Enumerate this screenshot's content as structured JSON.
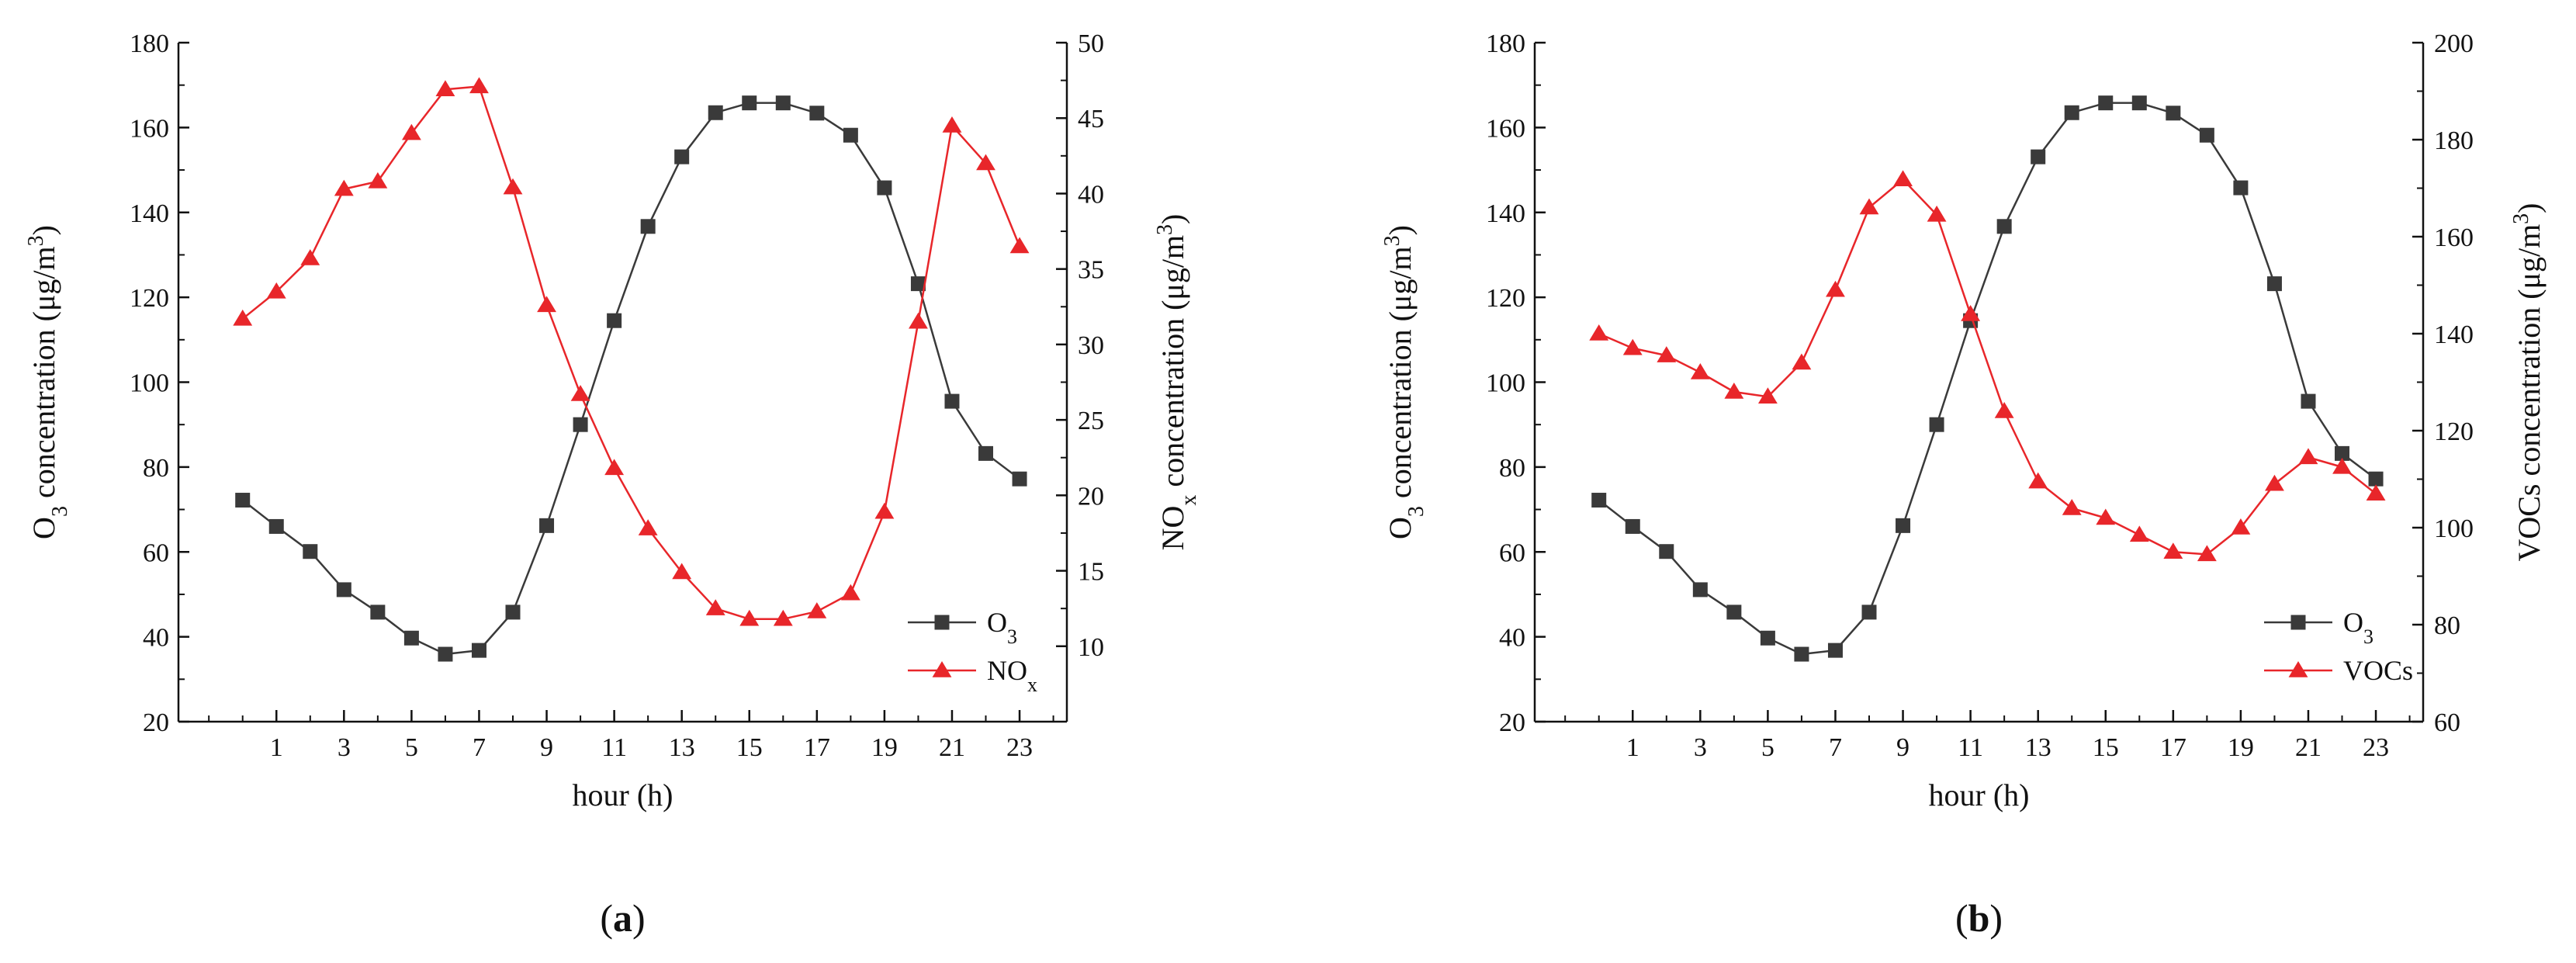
{
  "figure": {
    "panels": [
      {
        "label_open": "(",
        "label_letter": "a",
        "label_close": ")"
      },
      {
        "label_open": "(",
        "label_letter": "b",
        "label_close": ")"
      }
    ]
  },
  "colors": {
    "o3": "#3a3a3a",
    "secondary": "#e8262a",
    "axis": "#111111"
  },
  "icons": {
    "o3_marker": "square-marker-icon",
    "secondary_marker": "triangle-marker-icon"
  },
  "chart_data": [
    {
      "type": "line",
      "title": "",
      "xlabel": "hour (h)",
      "ylabel": "O3 concentration (μg/m3)",
      "ylabel_parts": {
        "pre": "O",
        "sub": "3",
        "mid": " concentration (μg/m",
        "sup": "3",
        "post": ")"
      },
      "y2label": "NOx concentration (μg/m3)",
      "y2label_parts": {
        "pre": "NO",
        "sub": "x",
        "mid": " concentration (μg/m",
        "sup": "3",
        "post": ")"
      },
      "xlim": [
        -1.9,
        24.4
      ],
      "ylim": [
        20,
        180
      ],
      "y2lim": [
        5,
        50
      ],
      "x_tick_labels": [
        {
          "x": 1,
          "label": "1"
        },
        {
          "x": 3,
          "label": "3"
        },
        {
          "x": 5,
          "label": "5"
        },
        {
          "x": 7,
          "label": "7"
        },
        {
          "x": 9,
          "label": "9"
        },
        {
          "x": 11,
          "label": "11"
        },
        {
          "x": 13,
          "label": "13"
        },
        {
          "x": 15,
          "label": "15"
        },
        {
          "x": 17,
          "label": "17"
        },
        {
          "x": 19,
          "label": "19"
        },
        {
          "x": 21,
          "label": "21"
        },
        {
          "x": 23,
          "label": "23"
        }
      ],
      "y_ticks": [
        {
          "value": 20,
          "label": "20"
        },
        {
          "value": 40,
          "label": "40"
        },
        {
          "value": 60,
          "label": "60"
        },
        {
          "value": 80,
          "label": "80"
        },
        {
          "value": 100,
          "label": "100"
        },
        {
          "value": 120,
          "label": "120"
        },
        {
          "value": 140,
          "label": "140"
        },
        {
          "value": 160,
          "label": "160"
        },
        {
          "value": 180,
          "label": "180"
        }
      ],
      "y2_ticks": [
        {
          "value": 10,
          "label": "10"
        },
        {
          "value": 15,
          "label": "15"
        },
        {
          "value": 20,
          "label": "20"
        },
        {
          "value": 25,
          "label": "25"
        },
        {
          "value": 30,
          "label": "30"
        },
        {
          "value": 35,
          "label": "35"
        },
        {
          "value": 40,
          "label": "40"
        },
        {
          "value": 45,
          "label": "45"
        },
        {
          "value": 50,
          "label": "50"
        }
      ],
      "legend_position": "bottom-right",
      "series": [
        {
          "name": "O3",
          "name_main": "O",
          "name_sub": "3",
          "axis": "left",
          "marker": "square",
          "color": "#3a3a3a",
          "x": [
            0,
            1,
            2,
            3,
            4,
            5,
            6,
            7,
            8,
            9,
            10,
            11,
            12,
            13,
            14,
            15,
            16,
            17,
            18,
            19,
            20,
            21,
            22,
            23
          ],
          "values": [
            72.2,
            66.0,
            60.1,
            51.1,
            45.8,
            39.7,
            35.9,
            36.8,
            45.8,
            66.2,
            90.0,
            114.5,
            136.7,
            153.1,
            163.5,
            165.8,
            165.8,
            163.4,
            158.2,
            145.8,
            123.2,
            95.5,
            83.2,
            77.2
          ]
        },
        {
          "name": "NOx",
          "name_main": "NO",
          "name_sub": "x",
          "axis": "right",
          "marker": "triangle",
          "color": "#e8262a",
          "x": [
            0,
            1,
            2,
            3,
            4,
            5,
            6,
            7,
            8,
            9,
            10,
            11,
            12,
            13,
            14,
            15,
            16,
            17,
            18,
            19,
            20,
            21,
            22,
            23
          ],
          "values": [
            31.7,
            33.5,
            35.7,
            40.3,
            40.8,
            44.0,
            46.9,
            47.1,
            40.4,
            32.6,
            26.7,
            21.8,
            17.8,
            14.9,
            12.5,
            11.8,
            11.8,
            12.3,
            13.5,
            18.9,
            31.5,
            44.5,
            42.0,
            36.5
          ]
        }
      ]
    },
    {
      "type": "line",
      "title": "",
      "xlabel": "hour (h)",
      "ylabel": "O3 concentration (μg/m3)",
      "ylabel_parts": {
        "pre": "O",
        "sub": "3",
        "mid": " concentration (μg/m",
        "sup": "3",
        "post": ")"
      },
      "y2label": "VOCs concentration (μg/m3)",
      "y2label_parts": {
        "pre": "VOCs",
        "sub": "",
        "mid": " concentration (μg/m",
        "sup": "3",
        "post": ")"
      },
      "xlim": [
        -1.9,
        24.4
      ],
      "ylim": [
        20,
        180
      ],
      "y2lim": [
        60,
        200
      ],
      "x_tick_labels": [
        {
          "x": 1,
          "label": "1"
        },
        {
          "x": 3,
          "label": "3"
        },
        {
          "x": 5,
          "label": "5"
        },
        {
          "x": 7,
          "label": "7"
        },
        {
          "x": 9,
          "label": "9"
        },
        {
          "x": 11,
          "label": "11"
        },
        {
          "x": 13,
          "label": "13"
        },
        {
          "x": 15,
          "label": "15"
        },
        {
          "x": 17,
          "label": "17"
        },
        {
          "x": 19,
          "label": "19"
        },
        {
          "x": 21,
          "label": "21"
        },
        {
          "x": 23,
          "label": "23"
        }
      ],
      "y_ticks": [
        {
          "value": 20,
          "label": "20"
        },
        {
          "value": 40,
          "label": "40"
        },
        {
          "value": 60,
          "label": "60"
        },
        {
          "value": 80,
          "label": "80"
        },
        {
          "value": 100,
          "label": "100"
        },
        {
          "value": 120,
          "label": "120"
        },
        {
          "value": 140,
          "label": "140"
        },
        {
          "value": 160,
          "label": "160"
        },
        {
          "value": 180,
          "label": "180"
        }
      ],
      "y2_ticks": [
        {
          "value": 60,
          "label": "60"
        },
        {
          "value": 80,
          "label": "80"
        },
        {
          "value": 100,
          "label": "100"
        },
        {
          "value": 120,
          "label": "120"
        },
        {
          "value": 140,
          "label": "140"
        },
        {
          "value": 160,
          "label": "160"
        },
        {
          "value": 180,
          "label": "180"
        },
        {
          "value": 200,
          "label": "200"
        }
      ],
      "legend_position": "bottom-right",
      "series": [
        {
          "name": "O3",
          "name_main": "O",
          "name_sub": "3",
          "axis": "left",
          "marker": "square",
          "color": "#3a3a3a",
          "x": [
            0,
            1,
            2,
            3,
            4,
            5,
            6,
            7,
            8,
            9,
            10,
            11,
            12,
            13,
            14,
            15,
            16,
            17,
            18,
            19,
            20,
            21,
            22,
            23
          ],
          "values": [
            72.2,
            66.0,
            60.1,
            51.1,
            45.8,
            39.7,
            35.9,
            36.8,
            45.8,
            66.2,
            90.0,
            114.5,
            136.7,
            153.1,
            163.5,
            165.8,
            165.8,
            163.4,
            158.2,
            145.8,
            123.2,
            95.5,
            83.2,
            77.2
          ]
        },
        {
          "name": "VOCs",
          "name_main": "VOCs",
          "name_sub": "",
          "axis": "right",
          "marker": "triangle",
          "color": "#e8262a",
          "x": [
            0,
            1,
            2,
            3,
            4,
            5,
            6,
            7,
            8,
            9,
            10,
            11,
            12,
            13,
            14,
            15,
            16,
            17,
            18,
            19,
            20,
            21,
            22,
            23
          ],
          "values": [
            140.0,
            137.0,
            135.5,
            132.0,
            128.0,
            127.0,
            134.0,
            149.0,
            166.0,
            171.8,
            164.5,
            144.0,
            124.0,
            109.5,
            104.0,
            102.0,
            98.5,
            95.0,
            94.5,
            100.0,
            109.0,
            114.5,
            112.5,
            107.0
          ]
        }
      ]
    }
  ]
}
